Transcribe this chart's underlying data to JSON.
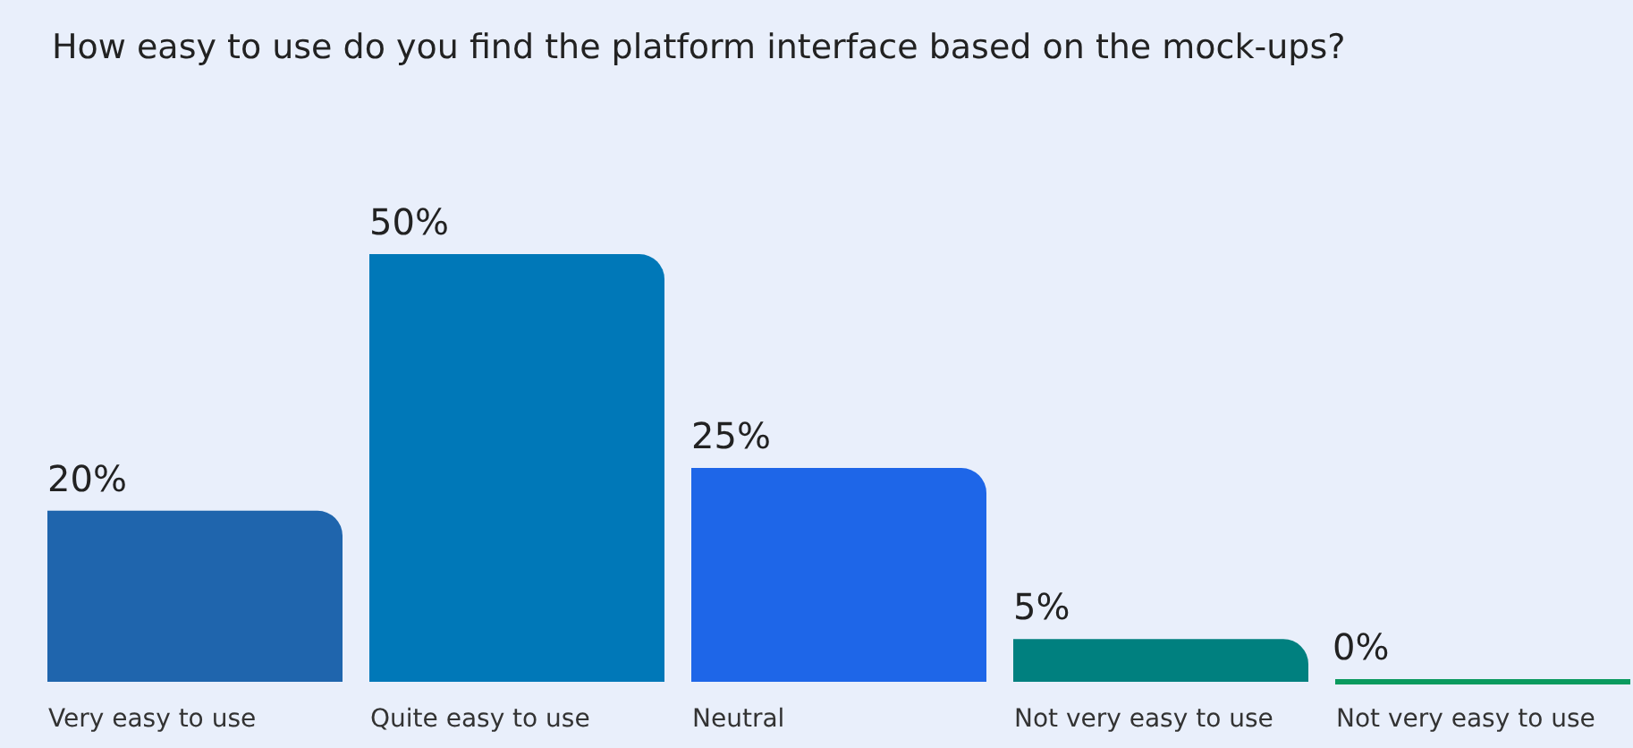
{
  "chart_data": {
    "type": "bar",
    "title": "How easy to use do you find the platform interface based on the mock-ups?",
    "categories": [
      "Very easy to use",
      "Quite easy to use",
      "Neutral",
      "Not very easy to use",
      "Not very easy to use"
    ],
    "values": [
      20,
      50,
      25,
      5,
      0
    ],
    "colors": [
      "#1f65ad",
      "#0078b8",
      "#1e66e8",
      "#00807f",
      "#0a9a5e"
    ],
    "value_labels": [
      "20%",
      "50%",
      "25%",
      "5%",
      "0%"
    ],
    "grid": false
  }
}
